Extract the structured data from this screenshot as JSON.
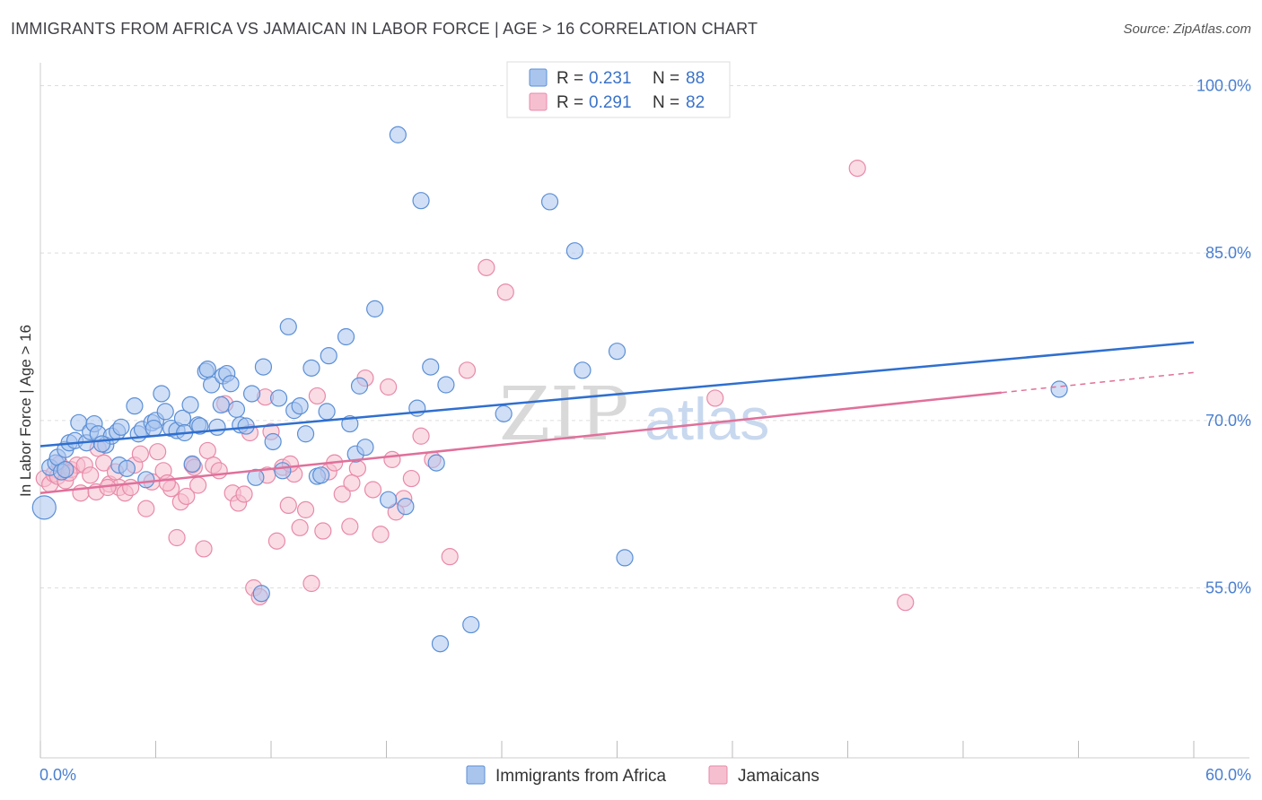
{
  "title": "IMMIGRANTS FROM AFRICA VS JAMAICAN IN LABOR FORCE | AGE > 16 CORRELATION CHART",
  "source": "Source: ZipAtlas.com",
  "watermark": {
    "zip": "ZIP",
    "atlas": "atlas"
  },
  "colors": {
    "blue_fill": "#a9c5ee",
    "blue_stroke": "#5b8fd6",
    "blue_line": "#2f6fcf",
    "pink_fill": "#f6bfd0",
    "pink_stroke": "#e88aa8",
    "pink_line": "#e0709a",
    "tick_text": "#4a7fd0",
    "grid": "#dddddd"
  },
  "legend": {
    "row1": {
      "r_label": "R =",
      "r_value": "0.231",
      "n_label": "N =",
      "n_value": "88"
    },
    "row2": {
      "r_label": "R =",
      "r_value": "0.291",
      "n_label": "N =",
      "n_value": "82"
    }
  },
  "bottom_legend": {
    "series1": "Immigrants from Africa",
    "series2": "Jamaicans"
  },
  "chart_data": {
    "type": "scatter",
    "title": "IMMIGRANTS FROM AFRICA VS JAMAICAN IN LABOR FORCE | AGE > 16 CORRELATION CHART",
    "xlabel": "",
    "ylabel": "In Labor Force | Age > 16",
    "xlim": [
      0,
      60
    ],
    "ylim": [
      40,
      103
    ],
    "x_tick_labels": [
      "0.0%",
      "60.0%"
    ],
    "y_ticks": [
      55,
      70,
      85,
      100
    ],
    "y_tick_labels": [
      "55.0%",
      "70.0%",
      "85.0%",
      "100.0%"
    ],
    "grid": true,
    "legend_placement": "top-center",
    "series": [
      {
        "name": "Immigrants from Africa",
        "r": 0.231,
        "n": 88,
        "trend": {
          "x": [
            0,
            60
          ],
          "y": [
            67.7,
            77.0
          ]
        },
        "points": [
          [
            0.2,
            62.2
          ],
          [
            0.5,
            65.8
          ],
          [
            0.8,
            66.2
          ],
          [
            0.9,
            66.7
          ],
          [
            1.1,
            65.4
          ],
          [
            1.3,
            67.4
          ],
          [
            1.5,
            68.0
          ],
          [
            1.8,
            68.2
          ],
          [
            2.0,
            69.8
          ],
          [
            2.4,
            68.0
          ],
          [
            2.6,
            69.0
          ],
          [
            2.8,
            69.7
          ],
          [
            3.0,
            68.8
          ],
          [
            3.4,
            67.8
          ],
          [
            3.7,
            68.6
          ],
          [
            4.0,
            69.0
          ],
          [
            4.1,
            66.0
          ],
          [
            4.2,
            69.4
          ],
          [
            4.5,
            65.7
          ],
          [
            4.9,
            71.3
          ],
          [
            5.1,
            68.8
          ],
          [
            5.3,
            69.2
          ],
          [
            5.5,
            64.7
          ],
          [
            5.8,
            69.8
          ],
          [
            6.0,
            70.0
          ],
          [
            6.3,
            72.4
          ],
          [
            6.5,
            70.8
          ],
          [
            6.8,
            69.3
          ],
          [
            7.1,
            69.1
          ],
          [
            7.4,
            70.2
          ],
          [
            7.5,
            68.9
          ],
          [
            7.8,
            71.4
          ],
          [
            7.9,
            66.1
          ],
          [
            8.2,
            69.6
          ],
          [
            8.6,
            74.4
          ],
          [
            8.7,
            74.6
          ],
          [
            8.9,
            73.2
          ],
          [
            9.2,
            69.4
          ],
          [
            9.4,
            71.4
          ],
          [
            9.5,
            74.0
          ],
          [
            9.7,
            74.2
          ],
          [
            9.9,
            73.3
          ],
          [
            10.2,
            71.0
          ],
          [
            10.4,
            69.6
          ],
          [
            10.7,
            69.5
          ],
          [
            11.0,
            72.4
          ],
          [
            11.2,
            64.9
          ],
          [
            11.5,
            54.5
          ],
          [
            11.6,
            74.8
          ],
          [
            12.1,
            68.1
          ],
          [
            12.4,
            72.0
          ],
          [
            12.6,
            65.5
          ],
          [
            12.9,
            78.4
          ],
          [
            13.2,
            70.9
          ],
          [
            13.5,
            71.3
          ],
          [
            13.8,
            68.8
          ],
          [
            14.1,
            74.7
          ],
          [
            14.4,
            65.0
          ],
          [
            14.6,
            65.1
          ],
          [
            14.9,
            70.8
          ],
          [
            15.0,
            75.8
          ],
          [
            15.9,
            77.5
          ],
          [
            16.1,
            69.7
          ],
          [
            16.4,
            67.0
          ],
          [
            16.6,
            73.1
          ],
          [
            16.9,
            67.6
          ],
          [
            17.4,
            80.0
          ],
          [
            18.1,
            62.9
          ],
          [
            18.6,
            95.6
          ],
          [
            19.0,
            62.3
          ],
          [
            19.6,
            71.1
          ],
          [
            19.8,
            89.7
          ],
          [
            20.3,
            74.8
          ],
          [
            20.6,
            66.2
          ],
          [
            20.8,
            50.0
          ],
          [
            21.1,
            73.2
          ],
          [
            22.4,
            51.7
          ],
          [
            24.1,
            70.6
          ],
          [
            26.5,
            89.6
          ],
          [
            27.8,
            85.2
          ],
          [
            28.2,
            74.5
          ],
          [
            30.0,
            76.2
          ],
          [
            30.4,
            57.7
          ],
          [
            53.0,
            72.8
          ],
          [
            1.3,
            65.6
          ],
          [
            3.2,
            67.9
          ],
          [
            5.9,
            69.3
          ],
          [
            8.3,
            69.5
          ]
        ]
      },
      {
        "name": "Jamaicans",
        "r": 0.291,
        "n": 82,
        "trend": {
          "x": [
            0,
            50
          ],
          "y": [
            63.5,
            72.5
          ]
        },
        "points": [
          [
            0.2,
            64.8
          ],
          [
            0.5,
            64.3
          ],
          [
            0.7,
            65.2
          ],
          [
            0.9,
            65.0
          ],
          [
            1.0,
            66.1
          ],
          [
            1.3,
            64.6
          ],
          [
            1.6,
            65.6
          ],
          [
            1.9,
            66.0
          ],
          [
            2.1,
            63.5
          ],
          [
            2.3,
            66.0
          ],
          [
            2.6,
            65.1
          ],
          [
            2.9,
            63.6
          ],
          [
            3.0,
            67.5
          ],
          [
            3.3,
            66.2
          ],
          [
            3.6,
            64.3
          ],
          [
            3.9,
            65.4
          ],
          [
            4.1,
            64.0
          ],
          [
            4.4,
            63.5
          ],
          [
            4.7,
            64.0
          ],
          [
            4.9,
            66.0
          ],
          [
            5.2,
            67.0
          ],
          [
            5.5,
            62.1
          ],
          [
            5.8,
            64.5
          ],
          [
            6.1,
            67.2
          ],
          [
            6.4,
            65.5
          ],
          [
            6.8,
            63.9
          ],
          [
            7.1,
            59.5
          ],
          [
            7.3,
            62.7
          ],
          [
            7.6,
            63.2
          ],
          [
            7.9,
            66.0
          ],
          [
            8.2,
            64.2
          ],
          [
            8.5,
            58.5
          ],
          [
            8.7,
            67.3
          ],
          [
            9.0,
            66.0
          ],
          [
            9.3,
            65.5
          ],
          [
            9.6,
            71.5
          ],
          [
            10.0,
            63.5
          ],
          [
            10.3,
            62.6
          ],
          [
            10.6,
            63.4
          ],
          [
            10.9,
            68.9
          ],
          [
            11.1,
            55.0
          ],
          [
            11.4,
            54.2
          ],
          [
            11.7,
            72.1
          ],
          [
            12.0,
            69.0
          ],
          [
            12.3,
            59.2
          ],
          [
            12.6,
            65.8
          ],
          [
            12.9,
            62.4
          ],
          [
            13.2,
            65.2
          ],
          [
            13.5,
            60.4
          ],
          [
            13.8,
            62.0
          ],
          [
            14.1,
            55.4
          ],
          [
            14.4,
            72.2
          ],
          [
            14.7,
            60.1
          ],
          [
            15.0,
            65.4
          ],
          [
            15.3,
            66.2
          ],
          [
            15.7,
            63.4
          ],
          [
            16.1,
            60.5
          ],
          [
            16.5,
            65.7
          ],
          [
            16.9,
            73.8
          ],
          [
            17.3,
            63.8
          ],
          [
            17.7,
            59.8
          ],
          [
            18.1,
            73.0
          ],
          [
            18.5,
            61.8
          ],
          [
            18.9,
            63.0
          ],
          [
            19.3,
            64.8
          ],
          [
            19.8,
            68.6
          ],
          [
            20.4,
            66.5
          ],
          [
            21.3,
            57.8
          ],
          [
            22.2,
            74.5
          ],
          [
            23.2,
            83.7
          ],
          [
            24.2,
            81.5
          ],
          [
            35.1,
            72.0
          ],
          [
            42.5,
            92.6
          ],
          [
            45.0,
            53.7
          ],
          [
            1.5,
            65.3
          ],
          [
            3.5,
            64.0
          ],
          [
            6.6,
            64.4
          ],
          [
            8.0,
            65.8
          ],
          [
            11.8,
            65.1
          ],
          [
            13.0,
            66.1
          ],
          [
            16.2,
            64.4
          ],
          [
            18.3,
            66.5
          ]
        ]
      }
    ]
  }
}
